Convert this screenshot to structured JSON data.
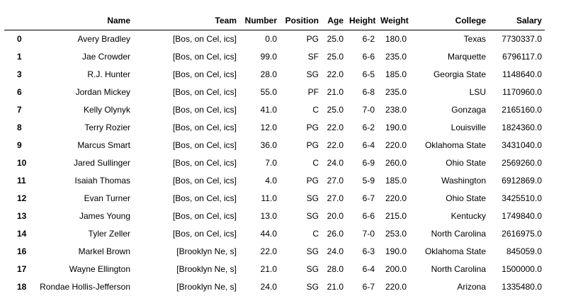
{
  "table": {
    "columns": [
      "",
      "Name",
      "Team",
      "Number",
      "Position",
      "Age",
      "Height",
      "Weight",
      "College",
      "Salary"
    ],
    "rows": [
      {
        "index": "0",
        "cells": [
          "Avery Bradley",
          "[Bos, on Cel, ics]",
          "0.0",
          "PG",
          "25.0",
          "6-2",
          "180.0",
          "Texas",
          "7730337.0"
        ]
      },
      {
        "index": "1",
        "cells": [
          "Jae Crowder",
          "[Bos, on Cel, ics]",
          "99.0",
          "SF",
          "25.0",
          "6-6",
          "235.0",
          "Marquette",
          "6796117.0"
        ]
      },
      {
        "index": "3",
        "cells": [
          "R.J. Hunter",
          "[Bos, on Cel, ics]",
          "28.0",
          "SG",
          "22.0",
          "6-5",
          "185.0",
          "Georgia State",
          "1148640.0"
        ]
      },
      {
        "index": "6",
        "cells": [
          "Jordan Mickey",
          "[Bos, on Cel, ics]",
          "55.0",
          "PF",
          "21.0",
          "6-8",
          "235.0",
          "LSU",
          "1170960.0"
        ]
      },
      {
        "index": "7",
        "cells": [
          "Kelly Olynyk",
          "[Bos, on Cel, ics]",
          "41.0",
          "C",
          "25.0",
          "7-0",
          "238.0",
          "Gonzaga",
          "2165160.0"
        ]
      },
      {
        "index": "8",
        "cells": [
          "Terry Rozier",
          "[Bos, on Cel, ics]",
          "12.0",
          "PG",
          "22.0",
          "6-2",
          "190.0",
          "Louisville",
          "1824360.0"
        ]
      },
      {
        "index": "9",
        "cells": [
          "Marcus Smart",
          "[Bos, on Cel, ics]",
          "36.0",
          "PG",
          "22.0",
          "6-4",
          "220.0",
          "Oklahoma State",
          "3431040.0"
        ]
      },
      {
        "index": "10",
        "cells": [
          "Jared Sullinger",
          "[Bos, on Cel, ics]",
          "7.0",
          "C",
          "24.0",
          "6-9",
          "260.0",
          "Ohio State",
          "2569260.0"
        ]
      },
      {
        "index": "11",
        "cells": [
          "Isaiah Thomas",
          "[Bos, on Cel, ics]",
          "4.0",
          "PG",
          "27.0",
          "5-9",
          "185.0",
          "Washington",
          "6912869.0"
        ]
      },
      {
        "index": "12",
        "cells": [
          "Evan Turner",
          "[Bos, on Cel, ics]",
          "11.0",
          "SG",
          "27.0",
          "6-7",
          "220.0",
          "Ohio State",
          "3425510.0"
        ]
      },
      {
        "index": "13",
        "cells": [
          "James Young",
          "[Bos, on Cel, ics]",
          "13.0",
          "SG",
          "20.0",
          "6-6",
          "215.0",
          "Kentucky",
          "1749840.0"
        ]
      },
      {
        "index": "14",
        "cells": [
          "Tyler Zeller",
          "[Bos, on Cel, ics]",
          "44.0",
          "C",
          "26.0",
          "7-0",
          "253.0",
          "North Carolina",
          "2616975.0"
        ]
      },
      {
        "index": "16",
        "cells": [
          "Markel Brown",
          "[Brooklyn Ne, s]",
          "22.0",
          "SG",
          "24.0",
          "6-3",
          "190.0",
          "Oklahoma State",
          "845059.0"
        ]
      },
      {
        "index": "17",
        "cells": [
          "Wayne Ellington",
          "[Brooklyn Ne, s]",
          "21.0",
          "SG",
          "28.0",
          "6-4",
          "200.0",
          "North Carolina",
          "1500000.0"
        ]
      },
      {
        "index": "18",
        "cells": [
          "Rondae Hollis-Jefferson",
          "[Brooklyn Ne, s]",
          "24.0",
          "SG",
          "21.0",
          "6-7",
          "220.0",
          "Arizona",
          "1335480.0"
        ]
      }
    ]
  }
}
